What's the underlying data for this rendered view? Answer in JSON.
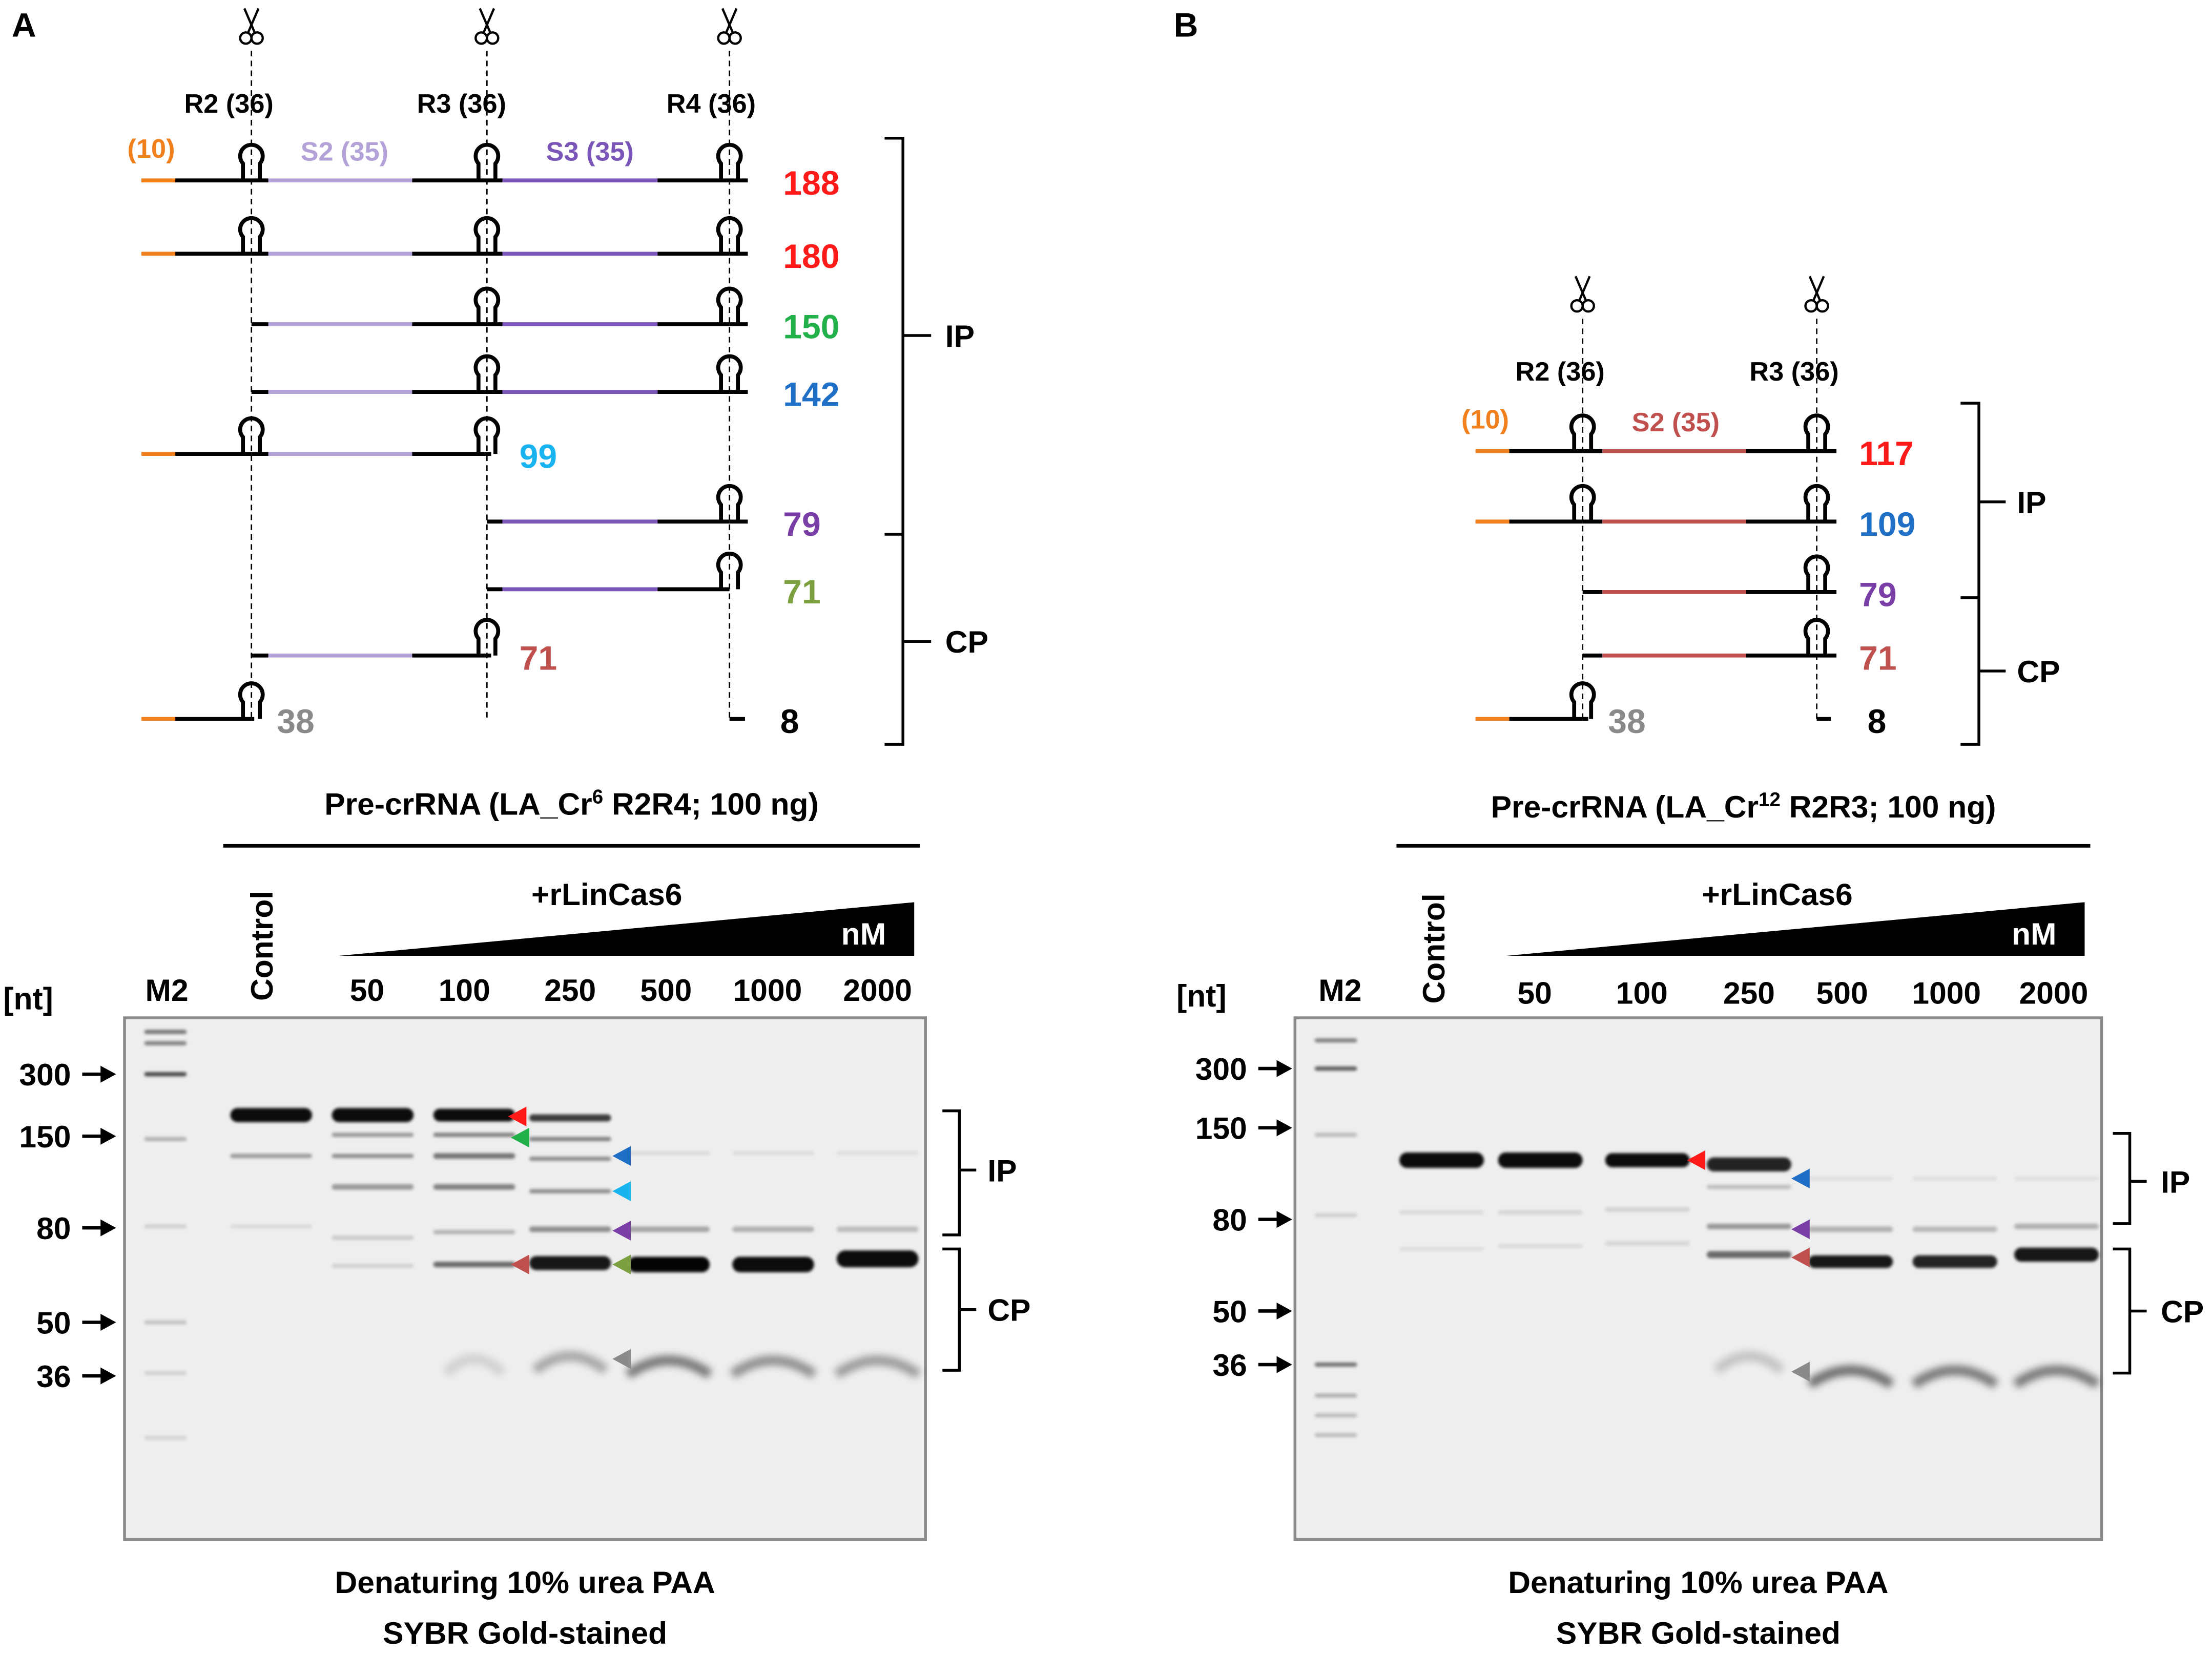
{
  "panels": [
    {
      "label": "A",
      "repeat_labels": [
        "R2 (36)",
        "R3 (36)",
        "R4 (36)"
      ],
      "leader_label": "(10)",
      "spacer_labels": [
        "S2 (35)",
        "S3 (35)"
      ],
      "products": [
        {
          "size": "188",
          "color": "#ff1a1a"
        },
        {
          "size": "180",
          "color": "#ff1a1a"
        },
        {
          "size": "150",
          "color": "#22b04a"
        },
        {
          "size": "142",
          "color": "#1f6fc6"
        },
        {
          "size": "99",
          "color": "#19b4f0"
        },
        {
          "size": "79",
          "color": "#7a3fa6"
        },
        {
          "size": "71",
          "color": "#7ca040"
        },
        {
          "size": "71",
          "color": "#c0504d"
        },
        {
          "size": "38",
          "color": "#8a8a8a"
        },
        {
          "size": "8",
          "color": "#000000"
        }
      ],
      "groups": [
        "IP",
        "CP"
      ],
      "substrate": {
        "text": "Pre-crRNA (LA_Cr",
        "sup": "6",
        "tail": " R2R4; 100 ng)"
      },
      "enzyme": "+rLinCas6",
      "unit": "nM",
      "size_unit": "[nt]",
      "marker": "M2",
      "control": "Control",
      "concentrations": [
        "50",
        "100",
        "250",
        "500",
        "1000",
        "2000"
      ],
      "marker_sizes": [
        "300",
        "150",
        "80",
        "50",
        "36"
      ],
      "gel_brackets": [
        "IP",
        "CP"
      ],
      "gel_caption": [
        "Denaturing 10% urea PAA",
        "SYBR Gold-stained"
      ]
    },
    {
      "label": "B",
      "repeat_labels": [
        "R2 (36)",
        "R3 (36)"
      ],
      "leader_label": "(10)",
      "spacer_labels": [
        "S2 (35)"
      ],
      "products": [
        {
          "size": "117",
          "color": "#ff1a1a"
        },
        {
          "size": "109",
          "color": "#1f6fc6"
        },
        {
          "size": "79",
          "color": "#7a3fa6"
        },
        {
          "size": "71",
          "color": "#c0504d"
        },
        {
          "size": "38",
          "color": "#8a8a8a"
        },
        {
          "size": "8",
          "color": "#000000"
        }
      ],
      "groups": [
        "IP",
        "CP"
      ],
      "substrate": {
        "text": "Pre-crRNA (LA_Cr",
        "sup": "12",
        "tail": " R2R3; 100 ng)"
      },
      "enzyme": "+rLinCas6",
      "unit": "nM",
      "size_unit": "[nt]",
      "marker": "M2",
      "control": "Control",
      "concentrations": [
        "50",
        "100",
        "250",
        "500",
        "1000",
        "2000"
      ],
      "marker_sizes": [
        "300",
        "150",
        "80",
        "50",
        "36"
      ],
      "gel_brackets": [
        "IP",
        "CP"
      ],
      "gel_caption": [
        "Denaturing 10% urea PAA",
        "SYBR Gold-stained"
      ]
    }
  ],
  "colors": {
    "leader": "#f07f1c",
    "spacer_a_s2": "#b3a2d7",
    "spacer_a_s3": "#7a56b8",
    "spacer_b_s2": "#c0504d",
    "gel_bg": "#eeeeee",
    "gel_border": "#8a8a8a"
  },
  "icons": {
    "scissors": "scissors-icon",
    "arrow": "right-arrow-icon",
    "hairpin": "hairpin-icon",
    "band_marker": "triangle-marker-icon"
  }
}
